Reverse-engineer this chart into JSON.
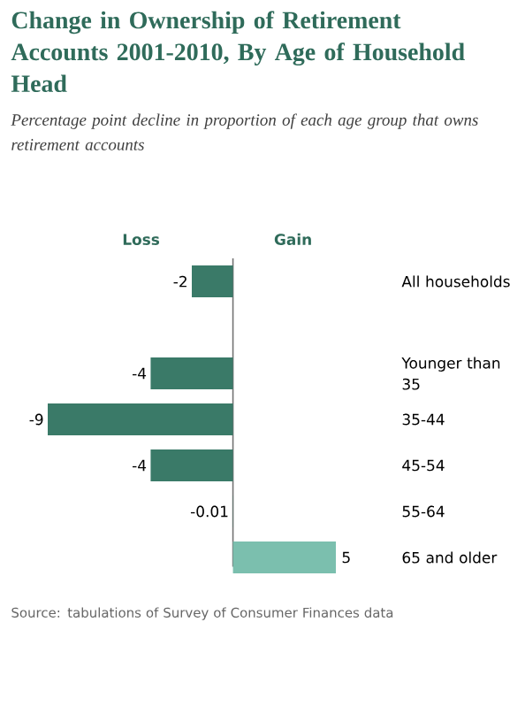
{
  "chart_data": {
    "type": "bar",
    "orientation": "horizontal",
    "title": "Change in Ownership of Retirement Accounts 2001-2010, By Age of Household Head",
    "subtitle": "Percentage point decline in proportion of each age group that owns retirement accounts",
    "categories": [
      "All households",
      "Younger than 35",
      "35-44",
      "45-54",
      "55-64",
      "65 and older"
    ],
    "values": [
      -2,
      -4,
      -9,
      -4,
      -0.01,
      5
    ],
    "colors": [
      "#3a7a68",
      "#3a7a68",
      "#3a7a68",
      "#3a7a68",
      "#3a7a68",
      "#7bbfae"
    ],
    "data_labels": true,
    "annotations": [
      "Loss",
      "Gain",
      "Source: tabulations of Survey of Consumer Finances data"
    ]
  }
}
